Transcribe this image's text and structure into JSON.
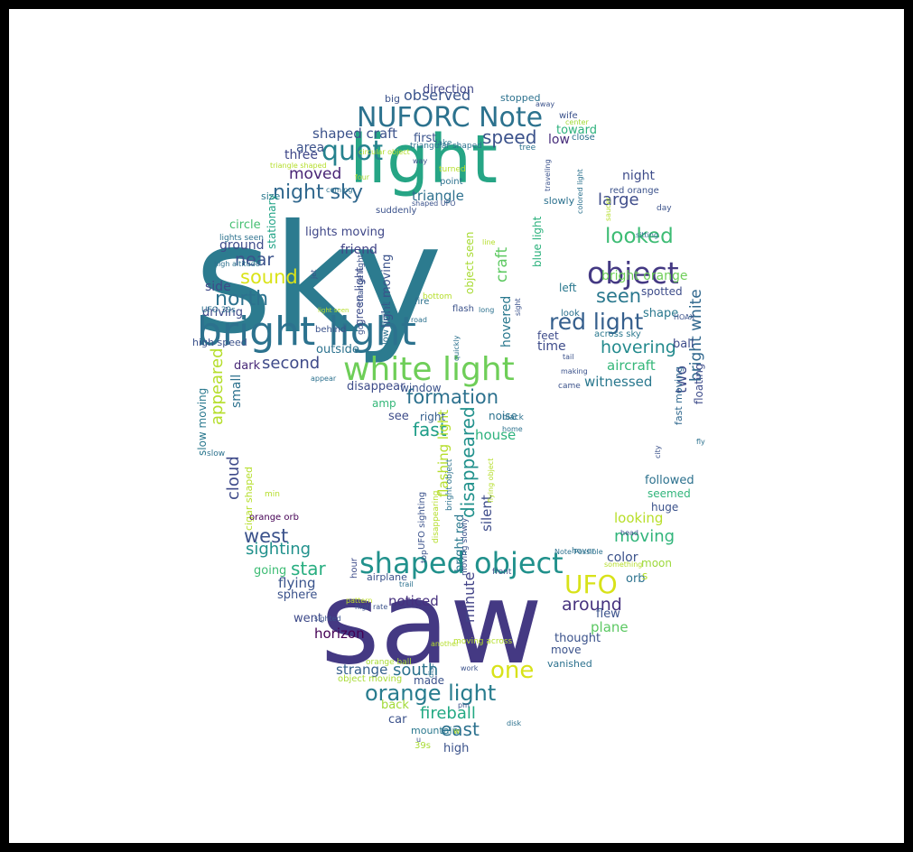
{
  "wordcloud": {
    "words": [
      {
        "t": "sky",
        "c": "#2c7b8f",
        "v": 1
      },
      {
        "t": "saw",
        "c": "#443983",
        "v": 1
      },
      {
        "t": "light",
        "c": "#26a585",
        "v": 1
      },
      {
        "t": "bright light",
        "c": "#2c728e",
        "v": 1
      },
      {
        "t": "white light",
        "c": "#6ece58",
        "v": 1
      },
      {
        "t": "NUFORC Note",
        "c": "#2c728e",
        "v": 1
      },
      {
        "t": "shaped object",
        "c": "#21918c",
        "v": 1
      },
      {
        "t": "object",
        "c": "#443983",
        "v": 1
      },
      {
        "t": "quot",
        "c": "#26828e",
        "v": 1
      },
      {
        "t": "orange light",
        "c": "#287c8e",
        "v": 1
      },
      {
        "t": "UFO",
        "c": "#d8e219",
        "v": 1
      },
      {
        "t": "red light",
        "c": "#355f8d",
        "v": 1
      },
      {
        "t": "night sky",
        "c": "#31688e",
        "v": 1
      },
      {
        "t": "looked",
        "c": "#3dbc74",
        "v": 1
      },
      {
        "t": "one",
        "c": "#d8e219",
        "v": 1
      },
      {
        "t": "formation",
        "c": "#2c718e",
        "v": 1
      },
      {
        "t": "hovering",
        "c": "#238a8d",
        "v": 1
      },
      {
        "t": "seen",
        "c": "#2a788e",
        "v": 1
      },
      {
        "t": "north",
        "c": "#2c718e",
        "v": 1
      },
      {
        "t": "sound",
        "c": "#dae319",
        "v": 1
      },
      {
        "t": "disappeared",
        "c": "#21918c",
        "v": 1
      },
      {
        "t": "craft",
        "c": "#5ec962",
        "v": 1
      },
      {
        "t": "speed",
        "c": "#3b528b",
        "v": 1
      },
      {
        "t": "observed",
        "c": "#3a548c",
        "v": 1
      },
      {
        "t": "appeared",
        "c": "#b5de2b",
        "v": 1
      },
      {
        "t": "bright white",
        "c": "#31688e",
        "v": 1
      },
      {
        "t": "two",
        "c": "#3e4c8a",
        "v": 1
      },
      {
        "t": "fast",
        "c": "#1f9e89",
        "v": 1
      },
      {
        "t": "star",
        "c": "#28ae80",
        "v": 1
      },
      {
        "t": "west",
        "c": "#3b528b",
        "v": 1
      },
      {
        "t": "moving",
        "c": "#31b57b",
        "v": 1
      },
      {
        "t": "around",
        "c": "#46327e",
        "v": 1
      },
      {
        "t": "south",
        "c": "#2c738e",
        "v": 1
      },
      {
        "t": "fireball",
        "c": "#23a983",
        "v": 1
      },
      {
        "t": "east",
        "c": "#2c718e",
        "v": 1
      },
      {
        "t": "sighting",
        "c": "#21918c",
        "v": 1
      },
      {
        "t": "second",
        "c": "#3e4a89",
        "v": 1
      },
      {
        "t": "large",
        "c": "#3e4c8a",
        "v": 1
      },
      {
        "t": "near",
        "c": "#3b528b",
        "v": 1
      },
      {
        "t": "minute",
        "c": "#414287",
        "v": 1
      },
      {
        "t": "flashing light",
        "c": "#b5de2b",
        "v": 1
      },
      {
        "t": "light moving",
        "c": "#3b528b",
        "v": 1
      },
      {
        "t": "cloud",
        "c": "#3e4a89",
        "v": 1
      },
      {
        "t": "aircraft",
        "c": "#35b779",
        "v": 1
      },
      {
        "t": "moved",
        "c": "#482475",
        "v": 1
      },
      {
        "t": "shaped craft",
        "c": "#3b528b",
        "v": 1
      },
      {
        "t": "triangle",
        "c": "#2d708e",
        "v": 1
      },
      {
        "t": "house",
        "c": "#2db27d",
        "v": 1
      },
      {
        "t": "looking",
        "c": "#b8de29",
        "v": 1
      },
      {
        "t": "silent",
        "c": "#3e4c8a",
        "v": 1
      },
      {
        "t": "bright red",
        "c": "#2a788e",
        "v": 1
      },
      {
        "t": "noticed",
        "c": "#46307e",
        "v": 1
      },
      {
        "t": "strange",
        "c": "#35608d",
        "v": 1
      },
      {
        "t": "flying",
        "c": "#3a548c",
        "v": 1
      },
      {
        "t": "horizon",
        "c": "#440154",
        "v": 1
      },
      {
        "t": "plane",
        "c": "#5cc863",
        "v": 1
      },
      {
        "t": "witnessed",
        "c": "#2a788e",
        "v": 1
      },
      {
        "t": "bright orange",
        "c": "#6ece58",
        "v": 1
      },
      {
        "t": "night",
        "c": "#3e4c8a",
        "v": 1
      },
      {
        "t": "time",
        "c": "#3e4c8a",
        "v": 1
      },
      {
        "t": "hovered",
        "c": "#2a788e",
        "v": 1
      },
      {
        "t": "object seen",
        "c": "#a8db34",
        "v": 1
      },
      {
        "t": "three",
        "c": "#3f4788",
        "v": 1
      },
      {
        "t": "area",
        "c": "#3b528b",
        "v": 1
      },
      {
        "t": "first",
        "c": "#3a548c",
        "v": 1
      },
      {
        "t": "low",
        "c": "#472d7b",
        "v": 1
      },
      {
        "t": "toward",
        "c": "#2db27d",
        "v": 1
      },
      {
        "t": "direction",
        "c": "#3f4788",
        "v": 1
      },
      {
        "t": "ground",
        "c": "#3e4c8a",
        "v": 1
      },
      {
        "t": "circle",
        "c": "#44bf70",
        "v": 1
      },
      {
        "t": "lights moving",
        "c": "#3f4788",
        "v": 1
      },
      {
        "t": "friend",
        "c": "#414487",
        "v": 1
      },
      {
        "t": "side",
        "c": "#3e4a89",
        "v": 1
      },
      {
        "t": "driving",
        "c": "#3e4a89",
        "v": 1
      },
      {
        "t": "outside",
        "c": "#2c728e",
        "v": 1
      },
      {
        "t": "dark",
        "c": "#482878",
        "v": 1
      },
      {
        "t": "disappear",
        "c": "#3e4c8a",
        "v": 1
      },
      {
        "t": "amp",
        "c": "#35b779",
        "v": 1
      },
      {
        "t": "see",
        "c": "#3e4c8a",
        "v": 1
      },
      {
        "t": "right",
        "c": "#355f8d",
        "v": 1
      },
      {
        "t": "noise",
        "c": "#2c728e",
        "v": 1
      },
      {
        "t": "window",
        "c": "#3b528b",
        "v": 1
      },
      {
        "t": "small",
        "c": "#2c718e",
        "v": 1
      },
      {
        "t": "slow moving",
        "c": "#2a788e",
        "v": 1
      },
      {
        "t": "high speed",
        "c": "#3b528b",
        "v": 1
      },
      {
        "t": "shape",
        "c": "#2a788e",
        "v": 1
      },
      {
        "t": "spotted",
        "c": "#3e4c8a",
        "v": 1
      },
      {
        "t": "left",
        "c": "#2a788e",
        "v": 1
      },
      {
        "t": "feet",
        "c": "#3e4c8a",
        "v": 1
      },
      {
        "t": "ball",
        "c": "#3e4c8a",
        "v": 1
      },
      {
        "t": "across sky",
        "c": "#2a788e",
        "v": 1
      },
      {
        "t": "fast moving",
        "c": "#31688e",
        "v": 1
      },
      {
        "t": "floating",
        "c": "#3e4c8a",
        "v": 1
      },
      {
        "t": "blue light",
        "c": "#2db27d",
        "v": 1
      },
      {
        "t": "green light",
        "c": "#3e4c8a",
        "v": 1
      },
      {
        "t": "stationary",
        "c": "#20a386",
        "v": 1
      },
      {
        "t": "size",
        "c": "#2a788e",
        "v": 1
      },
      {
        "t": "followed",
        "c": "#2c718e",
        "v": 1
      },
      {
        "t": "seemed",
        "c": "#31b57b",
        "v": 1
      },
      {
        "t": "huge",
        "c": "#3b528b",
        "v": 1
      },
      {
        "t": "color",
        "c": "#3b528b",
        "v": 1
      },
      {
        "t": "moon",
        "c": "#9dd93b",
        "v": 1
      },
      {
        "t": "orb",
        "c": "#2c728e",
        "v": 1
      },
      {
        "t": "flew",
        "c": "#3b528b",
        "v": 1
      },
      {
        "t": "thought",
        "c": "#3b528b",
        "v": 1
      },
      {
        "t": "move",
        "c": "#3b528b",
        "v": 1
      },
      {
        "t": "vanished",
        "c": "#2c718e",
        "v": 1
      },
      {
        "t": "went",
        "c": "#3e4a89",
        "v": 1
      },
      {
        "t": "going",
        "c": "#3dbc74",
        "v": 1
      },
      {
        "t": "sphere",
        "c": "#3b528b",
        "v": 1
      },
      {
        "t": "made",
        "c": "#3b528b",
        "v": 1
      },
      {
        "t": "back",
        "c": "#a2da37",
        "v": 1
      },
      {
        "t": "car",
        "c": "#3b528b",
        "v": 1
      },
      {
        "t": "high",
        "c": "#3b528b",
        "v": 1
      },
      {
        "t": "mountain",
        "c": "#2a788e",
        "v": 1
      },
      {
        "t": "39s",
        "c": "#a8db34",
        "v": 1
      },
      {
        "t": "cigar shaped",
        "c": "#b5de2b",
        "v": 1
      },
      {
        "t": "min",
        "c": "#b5de2b",
        "v": 1
      },
      {
        "t": "orange orb",
        "c": "#440154",
        "v": 1
      },
      {
        "t": "airplane",
        "c": "#3b528b",
        "v": 1
      },
      {
        "t": "hour",
        "c": "#3e4c8a",
        "v": 1
      },
      {
        "t": "orange ball",
        "c": "#a8db34",
        "v": 1
      },
      {
        "t": "object moving",
        "c": "#a8db34",
        "v": 1
      },
      {
        "t": "high rate",
        "c": "#3b528b",
        "v": 1
      },
      {
        "t": "sighted",
        "c": "#3b528b",
        "v": 1
      },
      {
        "t": "pattern",
        "c": "#bddf26",
        "v": 1
      },
      {
        "t": "stopped",
        "c": "#2c718e",
        "v": 1
      },
      {
        "t": "big",
        "c": "#3b528b",
        "v": 1
      },
      {
        "t": "away",
        "c": "#3b528b",
        "v": 1
      },
      {
        "t": "wife",
        "c": "#3b528b",
        "v": 1
      },
      {
        "t": "center",
        "c": "#a2da37",
        "v": 1
      },
      {
        "t": "close",
        "c": "#2c718e",
        "v": 1
      },
      {
        "t": "lake",
        "c": "#2a788e",
        "v": 1
      },
      {
        "t": "triangular shaped",
        "c": "#2c718e",
        "v": 1
      },
      {
        "t": "tree",
        "c": "#2c718e",
        "v": 1
      },
      {
        "t": "way",
        "c": "#3b528b",
        "v": 1
      },
      {
        "t": "triangle shaped",
        "c": "#b5de2b",
        "v": 1
      },
      {
        "t": "circular object",
        "c": "#b5de2b",
        "v": 1
      },
      {
        "t": "turned",
        "c": "#b5de2b",
        "v": 1
      },
      {
        "t": "point",
        "c": "#2c718e",
        "v": 1
      },
      {
        "t": "four",
        "c": "#a8db34",
        "v": 1
      },
      {
        "t": "coming",
        "c": "#2c718e",
        "v": 1
      },
      {
        "t": "suddenly",
        "c": "#3b528b",
        "v": 1
      },
      {
        "t": "shaped UFO",
        "c": "#3b528b",
        "v": 1
      },
      {
        "t": "slowly",
        "c": "#2c718e",
        "v": 1
      },
      {
        "t": "red orange",
        "c": "#3b528b",
        "v": 1
      },
      {
        "t": "day",
        "c": "#3b528b",
        "v": 1
      },
      {
        "t": "traveling",
        "c": "#3b528b",
        "v": 1
      },
      {
        "t": "colored light",
        "c": "#2c718e",
        "v": 1
      },
      {
        "t": "saucer",
        "c": "#b5de2b",
        "v": 1
      },
      {
        "t": "sitting",
        "c": "#2c718e",
        "v": 1
      },
      {
        "t": "lights seen",
        "c": "#2c718e",
        "v": 1
      },
      {
        "t": "high altitude",
        "c": "#2c718e",
        "v": 1
      },
      {
        "t": "jet",
        "c": "#3b528b",
        "v": 1
      },
      {
        "t": "UFO 39s",
        "c": "#2c718e",
        "v": 1
      },
      {
        "t": "light seen",
        "c": "#b5de2b",
        "v": 1
      },
      {
        "t": "behind",
        "c": "#3b528b",
        "v": 1
      },
      {
        "t": "go",
        "c": "#3b528b",
        "v": 1
      },
      {
        "t": "low flying",
        "c": "#2c718e",
        "v": 1
      },
      {
        "t": "fire",
        "c": "#2c718e",
        "v": 1
      },
      {
        "t": "bottom",
        "c": "#b5de2b",
        "v": 1
      },
      {
        "t": "flash",
        "c": "#3b528b",
        "v": 1
      },
      {
        "t": "long",
        "c": "#2c718e",
        "v": 1
      },
      {
        "t": "road",
        "c": "#2c718e",
        "v": 1
      },
      {
        "t": "quickly",
        "c": "#2c718e",
        "v": 1
      },
      {
        "t": "line",
        "c": "#b5de2b",
        "v": 1
      },
      {
        "t": "sight",
        "c": "#3b528b",
        "v": 1
      },
      {
        "t": "HOAX",
        "c": "#3b528b",
        "v": 1
      },
      {
        "t": "look",
        "c": "#2c718e",
        "v": 1
      },
      {
        "t": "tail",
        "c": "#3b528b",
        "v": 1
      },
      {
        "t": "making",
        "c": "#3b528b",
        "v": 1
      },
      {
        "t": "appear",
        "c": "#2c718e",
        "v": 1
      },
      {
        "t": "came",
        "c": "#3b528b",
        "v": 1
      },
      {
        "t": "black",
        "c": "#2c718e",
        "v": 1
      },
      {
        "t": "home",
        "c": "#2c718e",
        "v": 1
      },
      {
        "t": "city",
        "c": "#3b528b",
        "v": 1
      },
      {
        "t": "fly",
        "c": "#2c718e",
        "v": 1
      },
      {
        "t": "slow",
        "c": "#2c718e",
        "v": 1
      },
      {
        "t": "strange light",
        "c": "#3b528b",
        "v": 1
      },
      {
        "t": "bright object",
        "c": "#2c718e",
        "v": 1
      },
      {
        "t": "flying object",
        "c": "#b5de2b",
        "v": 1
      },
      {
        "t": "UFO sighting",
        "c": "#3b528b",
        "v": 1
      },
      {
        "t": "disappearing",
        "c": "#b5de2b",
        "v": 1
      },
      {
        "t": "moving slowly",
        "c": "#3b528b",
        "v": 1
      },
      {
        "t": "top",
        "c": "#3b528b",
        "v": 1
      },
      {
        "t": "Note Possible",
        "c": "#2c718e",
        "v": 1
      },
      {
        "t": "hover",
        "c": "#2c718e",
        "v": 1
      },
      {
        "t": "head",
        "c": "#3b528b",
        "v": 1
      },
      {
        "t": "something",
        "c": "#b5de2b",
        "v": 1
      },
      {
        "t": "trail",
        "c": "#2c718e",
        "v": 1
      },
      {
        "t": "front",
        "c": "#3b528b",
        "v": 1
      },
      {
        "t": "moving across",
        "c": "#b5de2b",
        "v": 1
      },
      {
        "t": "another",
        "c": "#b5de2b",
        "v": 1
      },
      {
        "t": "work",
        "c": "#3b528b",
        "v": 1
      },
      {
        "t": "disc",
        "c": "#2c718e",
        "v": 1
      },
      {
        "t": "pm",
        "c": "#3b528b",
        "v": 1
      },
      {
        "t": "disk",
        "c": "#2c718e",
        "v": 1
      },
      {
        "t": "w",
        "c": "#b5de2b",
        "v": 1
      },
      {
        "t": "u",
        "c": "#3b528b",
        "v": 1
      },
      {
        "t": "s",
        "c": "#b5de2b",
        "v": 1
      }
    ]
  }
}
